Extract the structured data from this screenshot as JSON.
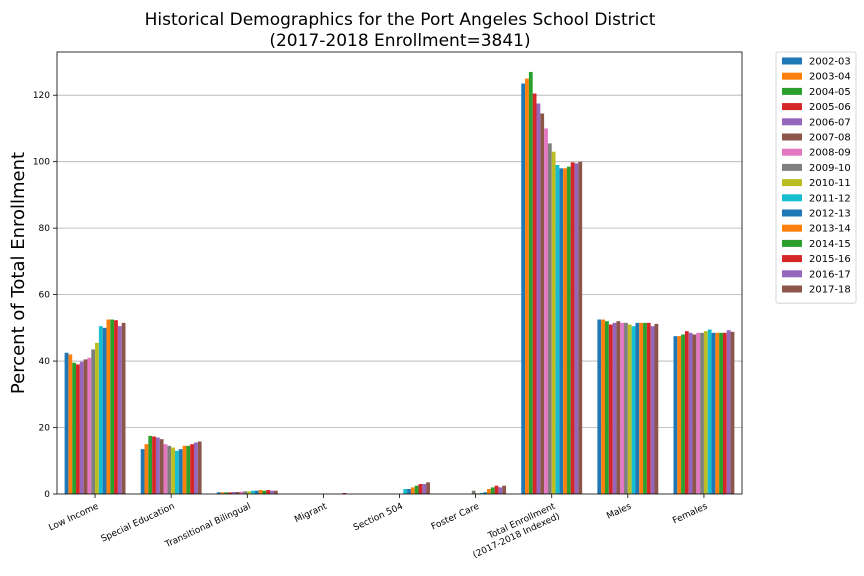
{
  "chart_data": {
    "type": "bar",
    "title": "Historical Demographics for the Port Angeles School District",
    "subtitle": "(2017-2018 Enrollment=3841)",
    "xlabel": "",
    "ylabel": "Percent of Total Enrollment",
    "ylim": [
      0,
      133
    ],
    "yticks": [
      0,
      20,
      40,
      60,
      80,
      100,
      120
    ],
    "grid": "horizontal",
    "legend_position": "outside-right",
    "categories": [
      "Low Income",
      "Special Education",
      "Transitional Bilingual",
      "Migrant",
      "Section 504",
      "Foster Care",
      "Total Enrollment\n(2017-2018 Indexed)",
      "Males",
      "Females"
    ],
    "series": [
      {
        "name": "2002-03",
        "color": "#1f77b4",
        "values": [
          42.5,
          13.5,
          0.5,
          0.0,
          0.0,
          0.0,
          123.5,
          52.5,
          47.5
        ]
      },
      {
        "name": "2003-04",
        "color": "#ff7f0e",
        "values": [
          42.0,
          15.0,
          0.5,
          0.0,
          0.0,
          0.0,
          125.0,
          52.5,
          47.5
        ]
      },
      {
        "name": "2004-05",
        "color": "#2ca02c",
        "values": [
          39.5,
          17.5,
          0.5,
          0.0,
          0.0,
          0.0,
          127.0,
          52.0,
          48.0
        ]
      },
      {
        "name": "2005-06",
        "color": "#d62728",
        "values": [
          39.0,
          17.3,
          0.5,
          0.0,
          0.0,
          0.0,
          120.5,
          51.0,
          49.0
        ]
      },
      {
        "name": "2006-07",
        "color": "#9467bd",
        "values": [
          39.8,
          17.0,
          0.6,
          0.0,
          0.0,
          0.0,
          117.5,
          51.5,
          48.5
        ]
      },
      {
        "name": "2007-08",
        "color": "#8c564b",
        "values": [
          40.5,
          16.5,
          0.6,
          0.0,
          0.0,
          0.0,
          114.5,
          52.0,
          48.0
        ]
      },
      {
        "name": "2008-09",
        "color": "#e377c2",
        "values": [
          41.0,
          15.0,
          0.7,
          0.0,
          0.0,
          0.0,
          110.0,
          51.5,
          48.5
        ]
      },
      {
        "name": "2009-10",
        "color": "#7f7f7f",
        "values": [
          43.5,
          14.5,
          0.8,
          0.0,
          0.0,
          1.0,
          105.5,
          51.5,
          48.5
        ]
      },
      {
        "name": "2010-11",
        "color": "#bcbd22",
        "values": [
          45.5,
          14.0,
          0.8,
          0.0,
          0.0,
          0.2,
          103.0,
          51.0,
          49.0
        ]
      },
      {
        "name": "2011-12",
        "color": "#17becf",
        "values": [
          50.5,
          13.0,
          1.0,
          0.0,
          1.5,
          0.3,
          99.0,
          50.5,
          49.5
        ]
      },
      {
        "name": "2012-13",
        "color": "#1f77b4",
        "values": [
          50.0,
          13.5,
          1.0,
          0.0,
          1.5,
          0.5,
          98.0,
          51.5,
          48.5
        ]
      },
      {
        "name": "2013-14",
        "color": "#ff7f0e",
        "values": [
          52.5,
          14.5,
          1.2,
          0.0,
          2.0,
          1.5,
          98.0,
          51.5,
          48.5
        ]
      },
      {
        "name": "2014-15",
        "color": "#2ca02c",
        "values": [
          52.5,
          14.5,
          1.0,
          0.0,
          2.5,
          2.0,
          98.5,
          51.5,
          48.5
        ]
      },
      {
        "name": "2015-16",
        "color": "#d62728",
        "values": [
          52.3,
          15.0,
          1.2,
          0.3,
          3.0,
          2.5,
          99.8,
          51.5,
          48.5
        ]
      },
      {
        "name": "2016-17",
        "color": "#9467bd",
        "values": [
          50.5,
          15.5,
          1.0,
          0.0,
          3.0,
          2.0,
          99.5,
          50.5,
          49.3
        ]
      },
      {
        "name": "2017-18",
        "color": "#8c564b",
        "values": [
          51.5,
          15.8,
          1.0,
          0.0,
          3.5,
          2.5,
          100.0,
          51.2,
          48.8
        ]
      }
    ]
  }
}
